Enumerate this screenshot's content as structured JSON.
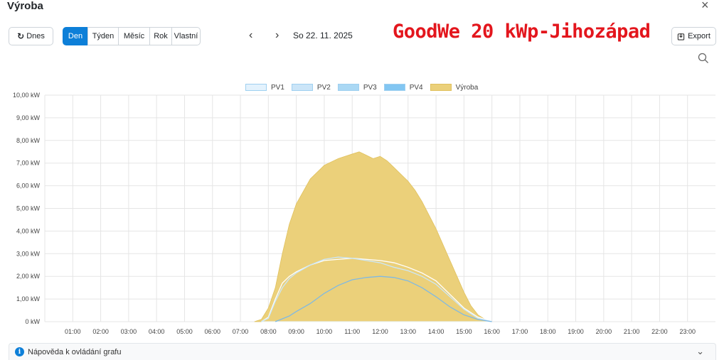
{
  "header": {
    "title": "Výroba",
    "close_glyph": "×"
  },
  "toolbar": {
    "today_icon": "↻",
    "today_label": "Dnes",
    "periods": [
      {
        "label": "Den",
        "active": true,
        "w": 36
      },
      {
        "label": "Týden",
        "active": false,
        "w": 44
      },
      {
        "label": "Měsíc",
        "active": false,
        "w": 45
      },
      {
        "label": "Rok",
        "active": false,
        "w": 32
      },
      {
        "label": "Vlastní",
        "active": false,
        "w": 41
      }
    ],
    "prev_glyph": "‹",
    "next_glyph": "›",
    "date": "So 22. 11. 2025",
    "overlay_title": "GoodWe 20 kWp-Jihozápad",
    "export_label": "Export"
  },
  "help": {
    "label": "Nápověda k ovládání grafu",
    "icon": "i"
  },
  "colors": {
    "pv1": "#e3f2fd",
    "pv2": "#cbe5f8",
    "pv3": "#aad8f4",
    "pv4": "#82c6f2",
    "vyroba": "#ebd07a",
    "grid": "#e5e5e5",
    "active": "#0d7fd8",
    "overlay": "#e3161d"
  },
  "chart_data": {
    "type": "area",
    "ylim": [
      0,
      10
    ],
    "xlim": [
      0,
      24
    ],
    "y_tick_labels": [
      "0 kW",
      "1,00 kW",
      "2,00 kW",
      "3,00 kW",
      "4,00 kW",
      "5,00 kW",
      "6,00 kW",
      "7,00 kW",
      "8,00 kW",
      "9,00 kW",
      "10,00 kW"
    ],
    "x_tick_labels": [
      "01:00",
      "02:00",
      "03:00",
      "04:00",
      "05:00",
      "06:00",
      "07:00",
      "08:00",
      "09:00",
      "10:00",
      "11:00",
      "12:00",
      "13:00",
      "14:00",
      "15:00",
      "16:00",
      "17:00",
      "18:00",
      "19:00",
      "20:00",
      "21:00",
      "22:00",
      "23:00"
    ],
    "grid": true,
    "legend_position": "top-center",
    "series": [
      {
        "name": "PV1",
        "x": [
          7.75,
          8.5,
          9.0,
          9.5,
          10.0,
          10.5,
          11.0,
          11.5,
          12.0,
          12.5,
          13.0,
          13.5,
          14.0,
          14.5,
          15.0,
          15.5,
          16.0
        ],
        "values": [
          0,
          0,
          0,
          0,
          0,
          0,
          0,
          0,
          0,
          0,
          0,
          0,
          0,
          0,
          0,
          0,
          0
        ]
      },
      {
        "name": "PV2",
        "x": [
          7.75,
          8.0,
          8.25,
          8.5,
          8.75,
          9.0,
          9.5,
          10.0,
          10.5,
          11.0,
          11.5,
          12.0,
          12.5,
          13.0,
          13.5,
          14.0,
          14.5,
          15.0,
          15.5,
          16.0
        ],
        "values": [
          0.0,
          0.2,
          1.0,
          1.7,
          2.0,
          2.2,
          2.5,
          2.7,
          2.75,
          2.8,
          2.75,
          2.7,
          2.6,
          2.4,
          2.15,
          1.8,
          1.2,
          0.6,
          0.2,
          0.0
        ]
      },
      {
        "name": "PV3",
        "x": [
          7.75,
          8.0,
          8.25,
          8.5,
          8.75,
          9.0,
          9.5,
          10.0,
          10.5,
          11.0,
          11.5,
          12.0,
          12.5,
          13.0,
          13.5,
          14.0,
          14.5,
          15.0,
          15.5,
          16.0
        ],
        "values": [
          0.0,
          0.15,
          0.9,
          1.5,
          1.9,
          2.15,
          2.5,
          2.75,
          2.85,
          2.8,
          2.7,
          2.6,
          2.4,
          2.25,
          2.0,
          1.65,
          1.1,
          0.55,
          0.15,
          0.0
        ]
      },
      {
        "name": "PV4",
        "x": [
          8.25,
          8.75,
          9.0,
          9.5,
          10.0,
          10.5,
          11.0,
          11.5,
          12.0,
          12.5,
          13.0,
          13.5,
          14.0,
          14.5,
          15.0,
          15.5,
          16.0
        ],
        "values": [
          0.0,
          0.25,
          0.45,
          0.8,
          1.25,
          1.6,
          1.85,
          1.95,
          2.0,
          1.95,
          1.8,
          1.5,
          1.1,
          0.65,
          0.3,
          0.1,
          0.0
        ]
      },
      {
        "name": "Výroba",
        "x": [
          7.5,
          7.75,
          8.0,
          8.25,
          8.5,
          8.75,
          9.0,
          9.5,
          10.0,
          10.5,
          11.0,
          11.25,
          11.5,
          11.75,
          12.0,
          12.25,
          12.5,
          12.75,
          13.0,
          13.25,
          13.5,
          13.75,
          14.0,
          14.25,
          14.5,
          14.75,
          15.0,
          15.25,
          15.5,
          15.75,
          16.0
        ],
        "values": [
          0.0,
          0.1,
          0.6,
          1.5,
          3.0,
          4.3,
          5.2,
          6.3,
          6.9,
          7.2,
          7.4,
          7.5,
          7.35,
          7.2,
          7.3,
          7.1,
          6.8,
          6.5,
          6.2,
          5.8,
          5.3,
          4.7,
          4.1,
          3.4,
          2.7,
          2.0,
          1.3,
          0.7,
          0.3,
          0.1,
          0.0
        ]
      }
    ]
  }
}
